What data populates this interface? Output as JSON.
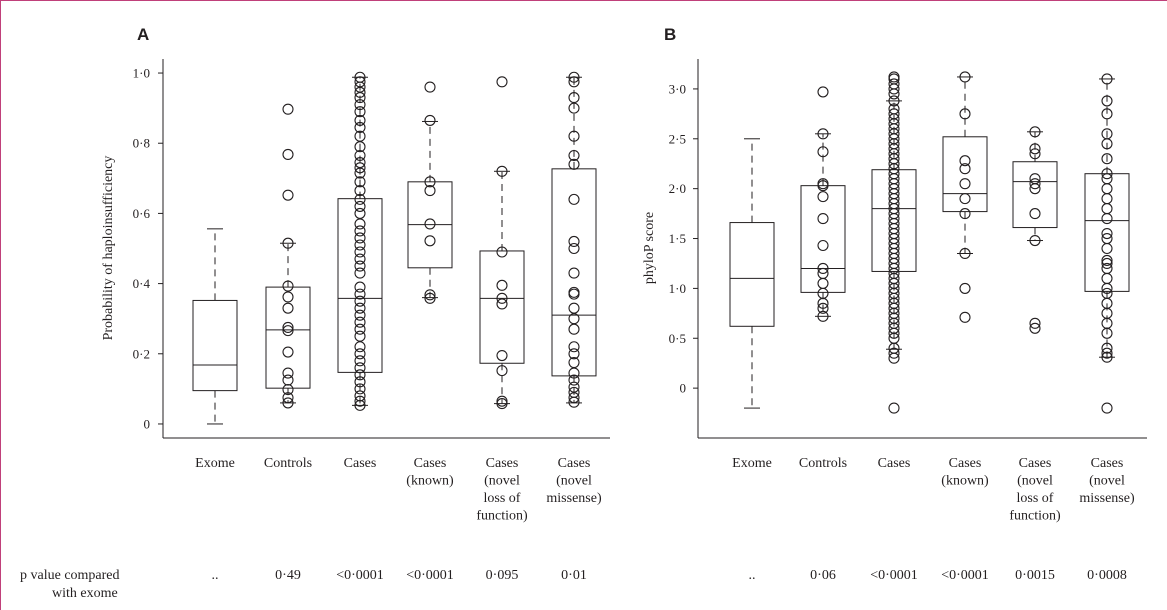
{
  "chart_data": [
    {
      "panel": "A",
      "type": "box",
      "ylabel": "Probability of haploinsufficiency",
      "ylim": [
        -0.04,
        1.04
      ],
      "yticks": [
        0,
        0.2,
        0.4,
        0.6,
        0.8,
        1.0
      ],
      "ytick_labels": [
        "0",
        "0·2",
        "0·4",
        "0·6",
        "0·8",
        "1·0"
      ],
      "categories": [
        [
          "Exome"
        ],
        [
          "Controls"
        ],
        [
          "Cases"
        ],
        [
          "Cases",
          "(known)"
        ],
        [
          "Cases",
          "(novel",
          "loss of",
          "function)"
        ],
        [
          "Cases",
          "(novel",
          "missense)"
        ]
      ],
      "boxes": [
        {
          "q1": 0.095,
          "median": 0.168,
          "q3": 0.352,
          "whisker_low": 0.0,
          "whisker_high": 0.556
        },
        {
          "q1": 0.102,
          "median": 0.268,
          "q3": 0.39,
          "whisker_low": 0.06,
          "whisker_high": 0.515
        },
        {
          "q1": 0.147,
          "median": 0.358,
          "q3": 0.642,
          "whisker_low": 0.053,
          "whisker_high": 0.988
        },
        {
          "q1": 0.445,
          "median": 0.568,
          "q3": 0.69,
          "whisker_low": 0.36,
          "whisker_high": 0.862
        },
        {
          "q1": 0.173,
          "median": 0.358,
          "q3": 0.493,
          "whisker_low": 0.058,
          "whisker_high": 0.72
        },
        {
          "q1": 0.137,
          "median": 0.31,
          "q3": 0.727,
          "whisker_low": 0.06,
          "whisker_high": 0.988
        }
      ],
      "points": [
        [],
        [
          0.897,
          0.768,
          0.652,
          0.515,
          0.393,
          0.362,
          0.33,
          0.275,
          0.266,
          0.205,
          0.145,
          0.125,
          0.098,
          0.075,
          0.06
        ],
        [
          0.988,
          0.975,
          0.96,
          0.945,
          0.93,
          0.91,
          0.89,
          0.865,
          0.845,
          0.82,
          0.79,
          0.765,
          0.745,
          0.73,
          0.715,
          0.69,
          0.665,
          0.64,
          0.62,
          0.6,
          0.57,
          0.55,
          0.53,
          0.51,
          0.49,
          0.47,
          0.45,
          0.43,
          0.39,
          0.37,
          0.35,
          0.33,
          0.31,
          0.29,
          0.27,
          0.25,
          0.22,
          0.2,
          0.18,
          0.16,
          0.14,
          0.12,
          0.1,
          0.08,
          0.065,
          0.053
        ],
        [
          0.96,
          0.865,
          0.69,
          0.665,
          0.57,
          0.522,
          0.368,
          0.358
        ],
        [
          0.975,
          0.72,
          0.49,
          0.395,
          0.358,
          0.342,
          0.195,
          0.152,
          0.065,
          0.058
        ],
        [
          0.988,
          0.975,
          0.93,
          0.9,
          0.82,
          0.765,
          0.74,
          0.64,
          0.52,
          0.5,
          0.43,
          0.375,
          0.37,
          0.33,
          0.3,
          0.27,
          0.22,
          0.2,
          0.175,
          0.145,
          0.125,
          0.105,
          0.09,
          0.075,
          0.062
        ]
      ],
      "p_values": [
        "..",
        "0·49",
        "<0·0001",
        "<0·0001",
        "0·095",
        "0·01"
      ]
    },
    {
      "panel": "B",
      "type": "box",
      "ylabel": "phyloP score",
      "ylim": [
        -0.5,
        3.3
      ],
      "yticks": [
        0,
        0.5,
        1.0,
        1.5,
        2.0,
        2.5,
        3.0
      ],
      "ytick_labels": [
        "0",
        "0·5",
        "1·0",
        "1·5",
        "2·0",
        "2·5",
        "3·0"
      ],
      "categories": [
        [
          "Exome"
        ],
        [
          "Controls"
        ],
        [
          "Cases"
        ],
        [
          "Cases",
          "(known)"
        ],
        [
          "Cases",
          "(novel",
          "loss of",
          "function)"
        ],
        [
          "Cases",
          "(novel",
          "missense)"
        ]
      ],
      "boxes": [
        {
          "q1": 0.62,
          "median": 1.1,
          "q3": 1.66,
          "whisker_low": -0.2,
          "whisker_high": 2.5
        },
        {
          "q1": 0.96,
          "median": 1.2,
          "q3": 2.03,
          "whisker_low": 0.72,
          "whisker_high": 2.55
        },
        {
          "q1": 1.17,
          "median": 1.8,
          "q3": 2.19,
          "whisker_low": 0.39,
          "whisker_high": 2.88
        },
        {
          "q1": 1.77,
          "median": 1.95,
          "q3": 2.52,
          "whisker_low": 1.35,
          "whisker_high": 3.12
        },
        {
          "q1": 1.61,
          "median": 2.07,
          "q3": 2.27,
          "whisker_low": 1.48,
          "whisker_high": 2.57
        },
        {
          "q1": 0.97,
          "median": 1.68,
          "q3": 2.15,
          "whisker_low": 0.31,
          "whisker_high": 3.1
        }
      ],
      "points": [
        [],
        [
          2.97,
          2.55,
          2.37,
          2.05,
          2.03,
          1.92,
          1.7,
          1.43,
          1.2,
          1.15,
          1.05,
          0.95,
          0.85,
          0.8,
          0.72
        ],
        [
          3.12,
          3.1,
          3.05,
          3.0,
          2.95,
          2.88,
          2.8,
          2.75,
          2.7,
          2.65,
          2.6,
          2.55,
          2.5,
          2.45,
          2.4,
          2.35,
          2.3,
          2.25,
          2.2,
          2.15,
          2.1,
          2.05,
          2.0,
          1.95,
          1.9,
          1.85,
          1.8,
          1.75,
          1.7,
          1.65,
          1.6,
          1.55,
          1.5,
          1.45,
          1.4,
          1.35,
          1.3,
          1.25,
          1.2,
          1.15,
          1.1,
          1.05,
          1.0,
          0.95,
          0.9,
          0.85,
          0.8,
          0.75,
          0.7,
          0.65,
          0.6,
          0.55,
          0.5,
          0.4,
          0.35,
          0.3,
          -0.2
        ],
        [
          3.12,
          2.75,
          2.28,
          2.2,
          2.05,
          1.9,
          1.75,
          1.35,
          1.0,
          0.71
        ],
        [
          2.57,
          2.4,
          2.35,
          2.1,
          2.05,
          2.0,
          1.75,
          1.48,
          0.65,
          0.6
        ],
        [
          3.1,
          2.88,
          2.75,
          2.55,
          2.45,
          2.3,
          2.15,
          2.1,
          2.0,
          1.9,
          1.8,
          1.7,
          1.55,
          1.5,
          1.4,
          1.28,
          1.25,
          1.2,
          1.1,
          1.0,
          0.95,
          0.85,
          0.75,
          0.65,
          0.55,
          0.4,
          0.35,
          0.31,
          -0.2
        ]
      ],
      "p_values": [
        "..",
        "0·06",
        "<0·0001",
        "<0·0001",
        "0·0015",
        "0·0008"
      ]
    }
  ],
  "p_value_label": [
    "p value compared",
    "with exome"
  ]
}
